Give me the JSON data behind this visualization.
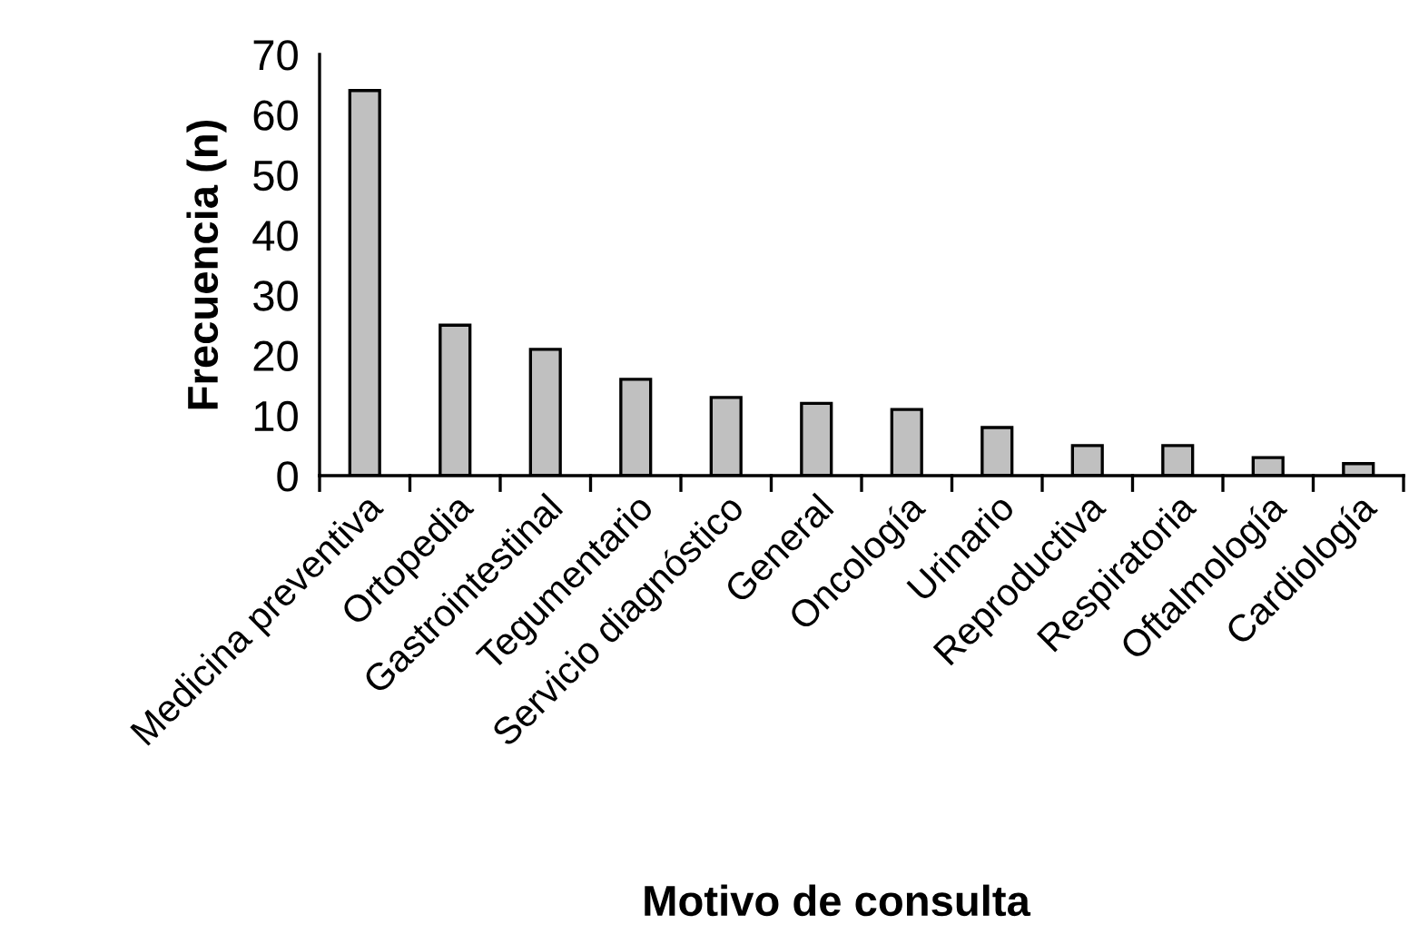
{
  "chart_data": {
    "type": "bar",
    "xlabel": "Motivo de consulta",
    "ylabel": "Frecuencia (n)",
    "categories": [
      "Medicina preventiva",
      "Ortopedia",
      "Gastrointestinal",
      "Tegumentario",
      "Servicio diagnóstico",
      "General",
      "Oncología",
      "Urinario",
      "Reproductiva",
      "Respiratoria",
      "Oftalmología",
      "Cardiología"
    ],
    "values": [
      64,
      25,
      21,
      16,
      13,
      12,
      11,
      8,
      5,
      5,
      3,
      2
    ],
    "color": "#c0c0c0",
    "ylim": [
      0,
      70
    ],
    "yticks": [
      0,
      10,
      20,
      30,
      40,
      50,
      60,
      70
    ],
    "grid": false,
    "legend": false
  }
}
